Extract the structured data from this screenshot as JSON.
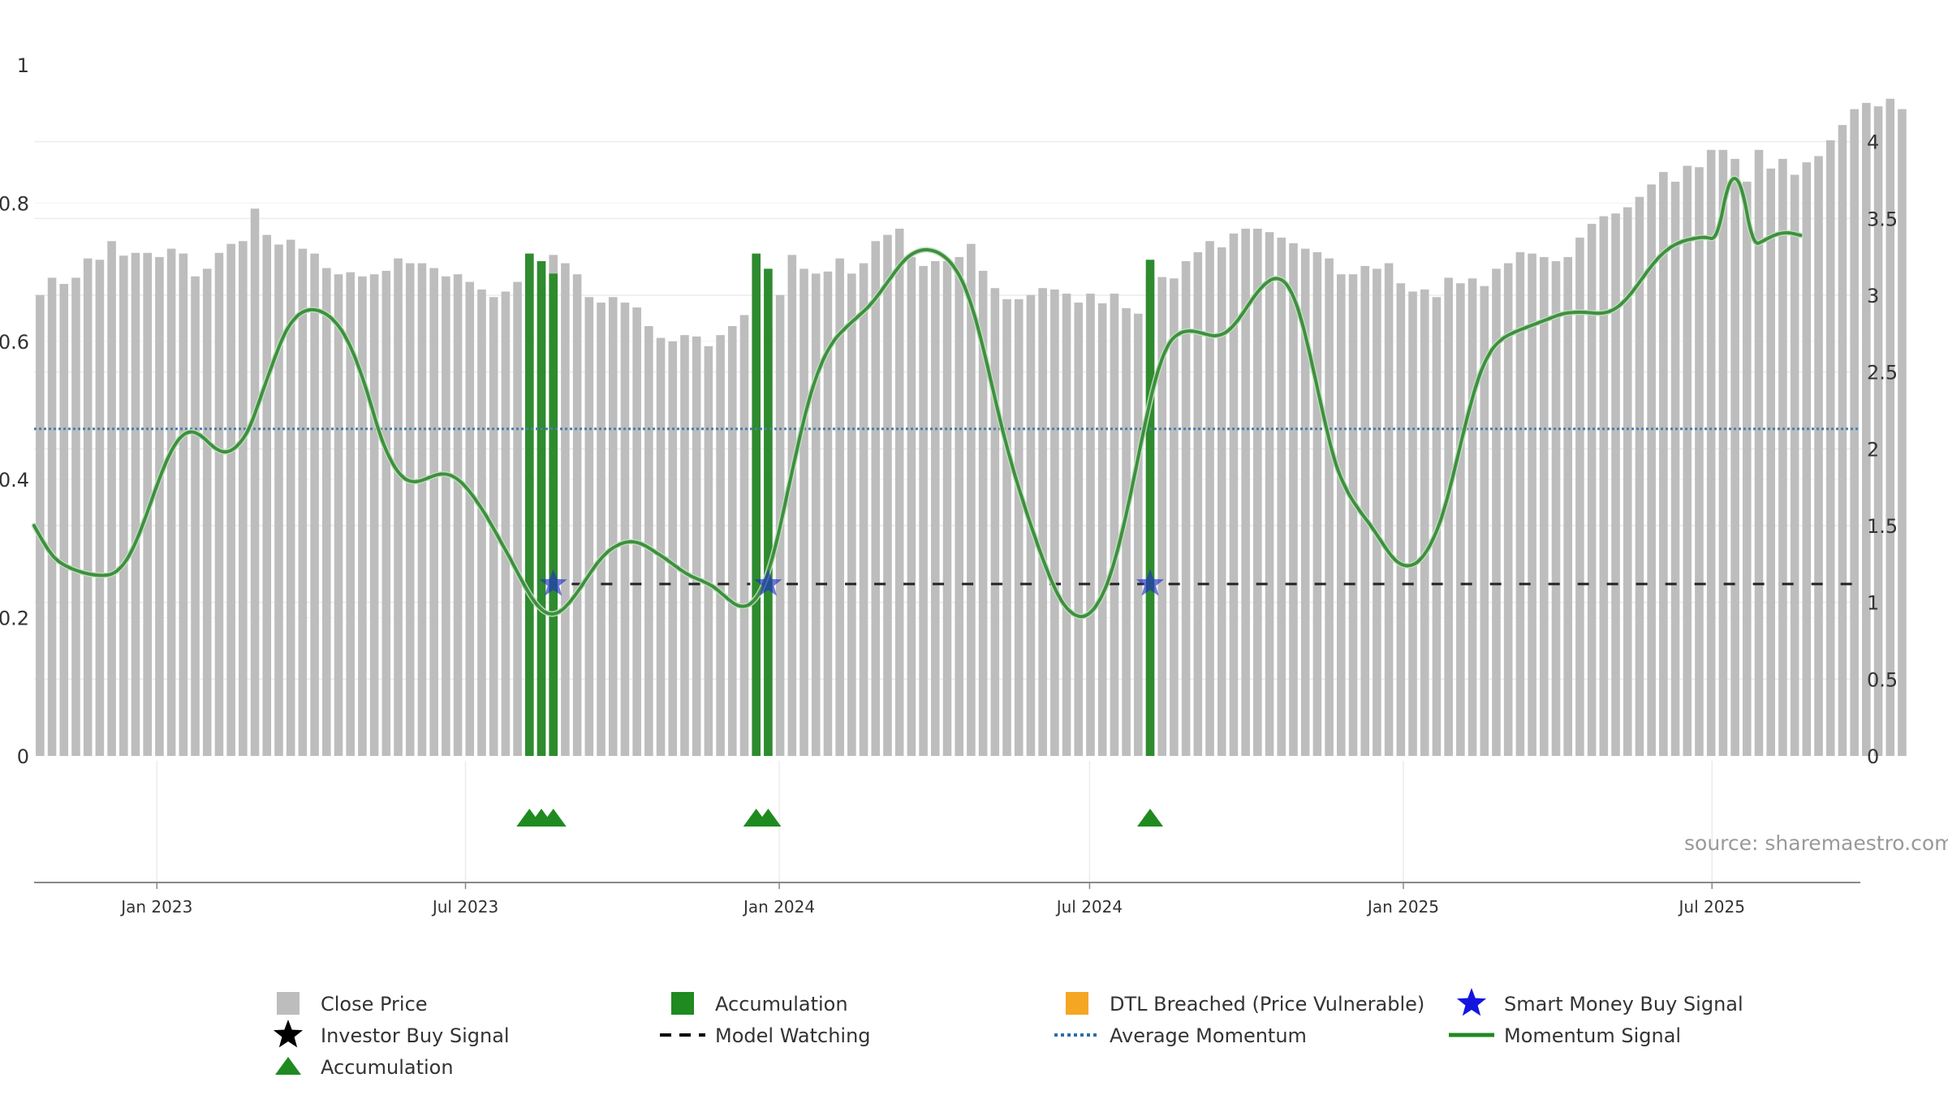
{
  "chart_data": {
    "type": "bar",
    "source_text": "source: sharemaestro.com",
    "left_axis": {
      "min": 0,
      "max": 1,
      "ticks": [
        "0",
        "0.2",
        "0.4",
        "0.6",
        "0.8",
        "1"
      ]
    },
    "right_axis": {
      "min": 0,
      "max": 4.5,
      "ticks": [
        "0",
        "0.5",
        "1",
        "1.5",
        "2",
        "2.5",
        "3",
        "3.5",
        "4"
      ]
    },
    "x_axis": {
      "start": "2022-10-21",
      "end": "2025-09-26",
      "ticks": [
        {
          "date": "2023-01-01",
          "label": "Jan 2023"
        },
        {
          "date": "2023-07-01",
          "label": "Jul 2023"
        },
        {
          "date": "2024-01-01",
          "label": "Jan 2024"
        },
        {
          "date": "2024-07-01",
          "label": "Jul 2024"
        },
        {
          "date": "2025-01-01",
          "label": "Jan 2025"
        },
        {
          "date": "2025-07-01",
          "label": "Jul 2025"
        }
      ]
    },
    "close_price": {
      "name": "Close Price",
      "color": "#bdbdbd",
      "start_date": "2022-10-21",
      "interval_days": 7,
      "values": [
        0.667,
        0.692,
        0.683,
        0.692,
        0.72,
        0.718,
        0.745,
        0.724,
        0.728,
        0.728,
        0.722,
        0.734,
        0.727,
        0.694,
        0.705,
        0.728,
        0.741,
        0.745,
        0.792,
        0.754,
        0.74,
        0.747,
        0.734,
        0.727,
        0.706,
        0.697,
        0.7,
        0.694,
        0.697,
        0.702,
        0.72,
        0.713,
        0.713,
        0.706,
        0.694,
        0.697,
        0.686,
        0.675,
        0.664,
        0.672,
        0.686,
        0.72,
        0.716,
        0.725,
        0.713,
        0.697,
        0.664,
        0.656,
        0.664,
        0.656,
        0.649,
        0.622,
        0.605,
        0.6,
        0.609,
        0.607,
        0.593,
        0.609,
        0.622,
        0.638,
        0.622,
        0.618,
        0.667,
        0.725,
        0.705,
        0.698,
        0.701,
        0.72,
        0.698,
        0.713,
        0.745,
        0.754,
        0.763,
        0.722,
        0.709,
        0.716,
        0.716,
        0.722,
        0.741,
        0.702,
        0.677,
        0.661,
        0.661,
        0.667,
        0.677,
        0.675,
        0.669,
        0.656,
        0.669,
        0.655,
        0.669,
        0.648,
        0.64,
        0.693,
        0.693,
        0.691,
        0.716,
        0.729,
        0.745,
        0.736,
        0.756,
        0.763,
        0.763,
        0.758,
        0.75,
        0.742,
        0.734,
        0.729,
        0.72,
        0.697,
        0.697,
        0.709,
        0.705,
        0.713,
        0.684,
        0.672,
        0.675,
        0.664,
        0.692,
        0.684,
        0.691,
        0.68,
        0.705,
        0.713,
        0.729,
        0.727,
        0.722,
        0.716,
        0.722,
        0.75,
        0.77,
        0.781,
        0.785,
        0.794,
        0.809,
        0.827,
        0.845,
        0.831,
        0.854,
        0.852,
        0.877,
        0.877,
        0.864,
        0.831,
        0.877,
        0.85,
        0.864,
        0.841,
        0.859,
        0.868,
        0.891,
        0.913,
        0.936,
        0.945,
        0.94,
        0.951,
        0.936
      ]
    },
    "accumulation_bars": {
      "name": "Accumulation",
      "color": "#2e8b2e",
      "points": [
        {
          "date": "2023-08-04",
          "value": 0.727
        },
        {
          "date": "2023-08-11",
          "value": 0.716
        },
        {
          "date": "2023-08-18",
          "value": 0.698
        },
        {
          "date": "2023-12-15",
          "value": 0.727
        },
        {
          "date": "2023-12-22",
          "value": 0.705
        },
        {
          "date": "2024-08-02",
          "value": 0.718
        }
      ]
    },
    "momentum_signal": {
      "name": "Momentum Signal",
      "color": "#3f8f3f",
      "points": [
        {
          "date": "2022-10-21",
          "value": 1.5
        },
        {
          "date": "2022-10-28",
          "value": 1.36
        },
        {
          "date": "2022-11-04",
          "value": 1.26
        },
        {
          "date": "2022-11-18",
          "value": 1.19
        },
        {
          "date": "2022-12-02",
          "value": 1.17
        },
        {
          "date": "2022-12-09",
          "value": 1.2
        },
        {
          "date": "2022-12-16",
          "value": 1.3
        },
        {
          "date": "2022-12-23",
          "value": 1.48
        },
        {
          "date": "2022-12-30",
          "value": 1.7
        },
        {
          "date": "2023-01-06",
          "value": 1.91
        },
        {
          "date": "2023-01-13",
          "value": 2.06
        },
        {
          "date": "2023-01-20",
          "value": 2.12
        },
        {
          "date": "2023-01-27",
          "value": 2.09
        },
        {
          "date": "2023-02-03",
          "value": 2.01
        },
        {
          "date": "2023-02-10",
          "value": 1.97
        },
        {
          "date": "2023-02-17",
          "value": 2.01
        },
        {
          "date": "2023-02-24",
          "value": 2.12
        },
        {
          "date": "2023-03-03",
          "value": 2.34
        },
        {
          "date": "2023-03-10",
          "value": 2.56
        },
        {
          "date": "2023-03-17",
          "value": 2.76
        },
        {
          "date": "2023-03-24",
          "value": 2.87
        },
        {
          "date": "2023-03-31",
          "value": 2.91
        },
        {
          "date": "2023-04-07",
          "value": 2.9
        },
        {
          "date": "2023-04-14",
          "value": 2.85
        },
        {
          "date": "2023-04-21",
          "value": 2.75
        },
        {
          "date": "2023-04-28",
          "value": 2.58
        },
        {
          "date": "2023-05-05",
          "value": 2.35
        },
        {
          "date": "2023-05-12",
          "value": 2.08
        },
        {
          "date": "2023-05-19",
          "value": 1.9
        },
        {
          "date": "2023-05-26",
          "value": 1.8
        },
        {
          "date": "2023-06-02",
          "value": 1.78
        },
        {
          "date": "2023-06-09",
          "value": 1.81
        },
        {
          "date": "2023-06-16",
          "value": 1.84
        },
        {
          "date": "2023-06-23",
          "value": 1.83
        },
        {
          "date": "2023-06-30",
          "value": 1.77
        },
        {
          "date": "2023-07-07",
          "value": 1.67
        },
        {
          "date": "2023-07-14",
          "value": 1.55
        },
        {
          "date": "2023-07-21",
          "value": 1.41
        },
        {
          "date": "2023-07-28",
          "value": 1.27
        },
        {
          "date": "2023-08-04",
          "value": 1.12
        },
        {
          "date": "2023-08-11",
          "value": 0.99
        },
        {
          "date": "2023-08-18",
          "value": 0.92
        },
        {
          "date": "2023-08-25",
          "value": 0.93
        },
        {
          "date": "2023-09-01",
          "value": 1.01
        },
        {
          "date": "2023-09-08",
          "value": 1.12
        },
        {
          "date": "2023-09-15",
          "value": 1.24
        },
        {
          "date": "2023-09-22",
          "value": 1.33
        },
        {
          "date": "2023-09-29",
          "value": 1.38
        },
        {
          "date": "2023-10-06",
          "value": 1.4
        },
        {
          "date": "2023-10-13",
          "value": 1.38
        },
        {
          "date": "2023-10-20",
          "value": 1.33
        },
        {
          "date": "2023-10-27",
          "value": 1.28
        },
        {
          "date": "2023-11-03",
          "value": 1.22
        },
        {
          "date": "2023-11-10",
          "value": 1.17
        },
        {
          "date": "2023-11-17",
          "value": 1.14
        },
        {
          "date": "2023-11-24",
          "value": 1.1
        },
        {
          "date": "2023-12-01",
          "value": 1.03
        },
        {
          "date": "2023-12-08",
          "value": 0.97
        },
        {
          "date": "2023-12-15",
          "value": 0.98
        },
        {
          "date": "2023-12-22",
          "value": 1.08
        },
        {
          "date": "2023-12-29",
          "value": 1.32
        },
        {
          "date": "2024-01-05",
          "value": 1.67
        },
        {
          "date": "2024-01-12",
          "value": 2.03
        },
        {
          "date": "2024-01-19",
          "value": 2.35
        },
        {
          "date": "2024-01-26",
          "value": 2.57
        },
        {
          "date": "2024-02-02",
          "value": 2.71
        },
        {
          "date": "2024-02-09",
          "value": 2.79
        },
        {
          "date": "2024-02-16",
          "value": 2.86
        },
        {
          "date": "2024-02-23",
          "value": 2.93
        },
        {
          "date": "2024-03-01",
          "value": 3.03
        },
        {
          "date": "2024-03-08",
          "value": 3.14
        },
        {
          "date": "2024-03-15",
          "value": 3.24
        },
        {
          "date": "2024-03-22",
          "value": 3.29
        },
        {
          "date": "2024-03-29",
          "value": 3.3
        },
        {
          "date": "2024-04-05",
          "value": 3.27
        },
        {
          "date": "2024-04-12",
          "value": 3.2
        },
        {
          "date": "2024-04-19",
          "value": 3.06
        },
        {
          "date": "2024-04-26",
          "value": 2.82
        },
        {
          "date": "2024-05-03",
          "value": 2.5
        },
        {
          "date": "2024-05-10",
          "value": 2.16
        },
        {
          "date": "2024-05-17",
          "value": 1.87
        },
        {
          "date": "2024-05-24",
          "value": 1.62
        },
        {
          "date": "2024-05-31",
          "value": 1.39
        },
        {
          "date": "2024-06-07",
          "value": 1.18
        },
        {
          "date": "2024-06-14",
          "value": 1.01
        },
        {
          "date": "2024-06-21",
          "value": 0.92
        },
        {
          "date": "2024-06-28",
          "value": 0.9
        },
        {
          "date": "2024-07-05",
          "value": 0.97
        },
        {
          "date": "2024-07-12",
          "value": 1.13
        },
        {
          "date": "2024-07-19",
          "value": 1.4
        },
        {
          "date": "2024-07-26",
          "value": 1.75
        },
        {
          "date": "2024-08-02",
          "value": 2.14
        },
        {
          "date": "2024-08-09",
          "value": 2.48
        },
        {
          "date": "2024-08-16",
          "value": 2.69
        },
        {
          "date": "2024-08-23",
          "value": 2.76
        },
        {
          "date": "2024-08-30",
          "value": 2.77
        },
        {
          "date": "2024-09-06",
          "value": 2.75
        },
        {
          "date": "2024-09-13",
          "value": 2.73
        },
        {
          "date": "2024-09-20",
          "value": 2.76
        },
        {
          "date": "2024-09-27",
          "value": 2.85
        },
        {
          "date": "2024-10-04",
          "value": 2.97
        },
        {
          "date": "2024-10-11",
          "value": 3.07
        },
        {
          "date": "2024-10-18",
          "value": 3.12
        },
        {
          "date": "2024-10-25",
          "value": 3.08
        },
        {
          "date": "2024-11-01",
          "value": 2.9
        },
        {
          "date": "2024-11-08",
          "value": 2.58
        },
        {
          "date": "2024-11-15",
          "value": 2.22
        },
        {
          "date": "2024-11-22",
          "value": 1.9
        },
        {
          "date": "2024-11-29",
          "value": 1.72
        },
        {
          "date": "2024-12-06",
          "value": 1.6
        },
        {
          "date": "2024-12-13",
          "value": 1.5
        },
        {
          "date": "2024-12-20",
          "value": 1.38
        },
        {
          "date": "2024-12-27",
          "value": 1.27
        },
        {
          "date": "2025-01-03",
          "value": 1.23
        },
        {
          "date": "2025-01-10",
          "value": 1.26
        },
        {
          "date": "2025-01-17",
          "value": 1.37
        },
        {
          "date": "2025-01-24",
          "value": 1.56
        },
        {
          "date": "2025-01-31",
          "value": 1.86
        },
        {
          "date": "2025-02-07",
          "value": 2.19
        },
        {
          "date": "2025-02-14",
          "value": 2.47
        },
        {
          "date": "2025-02-21",
          "value": 2.64
        },
        {
          "date": "2025-02-28",
          "value": 2.72
        },
        {
          "date": "2025-03-07",
          "value": 2.76
        },
        {
          "date": "2025-03-14",
          "value": 2.79
        },
        {
          "date": "2025-03-21",
          "value": 2.82
        },
        {
          "date": "2025-03-28",
          "value": 2.85
        },
        {
          "date": "2025-04-04",
          "value": 2.88
        },
        {
          "date": "2025-04-11",
          "value": 2.89
        },
        {
          "date": "2025-04-18",
          "value": 2.89
        },
        {
          "date": "2025-04-25",
          "value": 2.88
        },
        {
          "date": "2025-05-02",
          "value": 2.89
        },
        {
          "date": "2025-05-09",
          "value": 2.94
        },
        {
          "date": "2025-05-16",
          "value": 3.03
        },
        {
          "date": "2025-05-23",
          "value": 3.14
        },
        {
          "date": "2025-05-30",
          "value": 3.24
        },
        {
          "date": "2025-06-06",
          "value": 3.31
        },
        {
          "date": "2025-06-13",
          "value": 3.35
        },
        {
          "date": "2025-06-20",
          "value": 3.37
        },
        {
          "date": "2025-06-27",
          "value": 3.38
        },
        {
          "date": "2025-07-04",
          "value": 3.36
        },
        {
          "date": "2025-07-11",
          "value": 3.77
        },
        {
          "date": "2025-07-18",
          "value": 3.75
        },
        {
          "date": "2025-07-25",
          "value": 3.32
        },
        {
          "date": "2025-08-01",
          "value": 3.36
        },
        {
          "date": "2025-08-08",
          "value": 3.4
        },
        {
          "date": "2025-08-15",
          "value": 3.41
        },
        {
          "date": "2025-08-22",
          "value": 3.39
        }
      ]
    },
    "average_momentum": {
      "name": "Average Momentum",
      "value": 2.13,
      "color": "#4a7fa8"
    },
    "model_watching": {
      "name": "Model Watching",
      "value": 1.12,
      "color": "#222222",
      "segments": [
        {
          "start": "2023-08-18",
          "end": "2023-12-15"
        },
        {
          "start": "2023-12-22",
          "end": "2024-08-02"
        },
        {
          "start": "2024-08-02",
          "end": "2025-09-26"
        }
      ]
    },
    "smart_money_signals": {
      "name": "Smart Money Buy Signal",
      "color": "#2030c8",
      "points": [
        {
          "date": "2023-08-18",
          "value": 1.12
        },
        {
          "date": "2023-12-22",
          "value": 1.12
        },
        {
          "date": "2024-08-02",
          "value": 1.12
        }
      ]
    },
    "accumulation_markers": {
      "name": "Accumulation",
      "color": "#1f8a1f",
      "dates": [
        "2023-08-04",
        "2023-08-11",
        "2023-08-18",
        "2023-12-15",
        "2023-12-22",
        "2024-08-02"
      ]
    },
    "legend": [
      {
        "label": "Close Price",
        "symbol": "square",
        "color": "#bdbdbd"
      },
      {
        "label": "Accumulation",
        "symbol": "square",
        "color": "#1f8a1f"
      },
      {
        "label": "DTL Breached (Price Vulnerable)",
        "symbol": "square",
        "color": "#f5a623"
      },
      {
        "label": "Smart Money Buy Signal",
        "symbol": "star",
        "color": "#1515e0"
      },
      {
        "label": "Investor Buy Signal",
        "symbol": "star",
        "color": "#000000"
      },
      {
        "label": "Model Watching",
        "symbol": "dash",
        "color": "#000000"
      },
      {
        "label": "Average Momentum",
        "symbol": "dot",
        "color": "#2a6fa8"
      },
      {
        "label": "Momentum Signal",
        "symbol": "line",
        "color": "#1f8a1f"
      },
      {
        "label": "Accumulation",
        "symbol": "triangle",
        "color": "#1f8a1f"
      }
    ]
  }
}
